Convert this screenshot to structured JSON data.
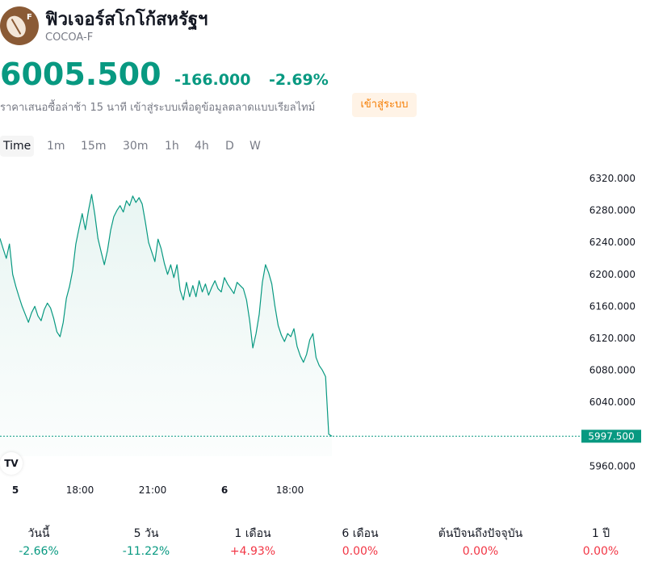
{
  "header": {
    "logo_badge": "F",
    "title": "ฟิวเจอร์สโกโก้สหรัฐฯ",
    "symbol": "COCOA-F"
  },
  "quote": {
    "price": "6005.500",
    "change": "-166.000",
    "change_pct": "-2.69%",
    "delay_note": "ราคาเสนอซื้อล่าช้า 15 นาที เข้าสู่ระบบเพื่อดูข้อมูลตลาดแบบเรียลไทม์",
    "login_label": "เข้าสู่ระบบ"
  },
  "tabs": [
    "Time",
    "1m",
    "15m",
    "30m",
    "1h",
    "4h",
    "D",
    "W"
  ],
  "tv_logo": "TV",
  "colors": {
    "line": "#089981",
    "fill_top": "#e6f4f1",
    "negative": "#089981",
    "positive": "#f23645",
    "last_price_bg": "#089981",
    "login_bg": "#fff3e6",
    "login_text": "#f57c00"
  },
  "chart_data": {
    "type": "area",
    "y_ticks": [
      "6320.000",
      "6280.000",
      "6240.000",
      "6200.000",
      "6160.000",
      "6120.000",
      "6080.000",
      "6040.000",
      "5960.000"
    ],
    "ylim": [
      5950,
      6330
    ],
    "x_ticks": [
      {
        "label": "5",
        "bold": true
      },
      {
        "label": "18:00",
        "bold": false
      },
      {
        "label": "21:00",
        "bold": false
      },
      {
        "label": "6",
        "bold": true
      },
      {
        "label": "18:00",
        "bold": false
      }
    ],
    "last_price_label": "5997.500",
    "last_price": 5997.5,
    "series": [
      {
        "values": [
          6245,
          6232,
          6220,
          6238,
          6200,
          6185,
          6172,
          6160,
          6150,
          6140,
          6152,
          6160,
          6148,
          6142,
          6156,
          6164,
          6158,
          6145,
          6128,
          6122,
          6140,
          6170,
          6185,
          6205,
          6238,
          6258,
          6276,
          6256,
          6280,
          6300,
          6275,
          6245,
          6228,
          6212,
          6230,
          6255,
          6272,
          6280,
          6286,
          6278,
          6292,
          6286,
          6298,
          6290,
          6296,
          6288,
          6265,
          6240,
          6228,
          6216,
          6244,
          6232,
          6214,
          6200,
          6212,
          6196,
          6212,
          6180,
          6168,
          6190,
          6172,
          6186,
          6172,
          6192,
          6178,
          6188,
          6174,
          6184,
          6192,
          6182,
          6178,
          6196,
          6188,
          6182,
          6176,
          6190,
          6186,
          6182,
          6168,
          6142,
          6108,
          6126,
          6150,
          6190,
          6212,
          6202,
          6188,
          6160,
          6136,
          6124,
          6116,
          6126,
          6122,
          6132,
          6110,
          6098,
          6090,
          6100,
          6118,
          6126,
          6096,
          6086,
          6080,
          6072,
          6000,
          5997.5
        ]
      }
    ]
  },
  "performance": [
    {
      "label": "วันนี้",
      "value": "-2.66%",
      "trend": "neg"
    },
    {
      "label": "5 วัน",
      "value": "-11.22%",
      "trend": "neg"
    },
    {
      "label": "1 เดือน",
      "value": "+4.93%",
      "trend": "pos"
    },
    {
      "label": "6 เดือน",
      "value": "0.00%",
      "trend": "pos"
    },
    {
      "label": "ต้นปีจนถึงปัจจุบัน",
      "value": "0.00%",
      "trend": "pos"
    },
    {
      "label": "1 ปี",
      "value": "0.00%",
      "trend": "pos"
    }
  ]
}
